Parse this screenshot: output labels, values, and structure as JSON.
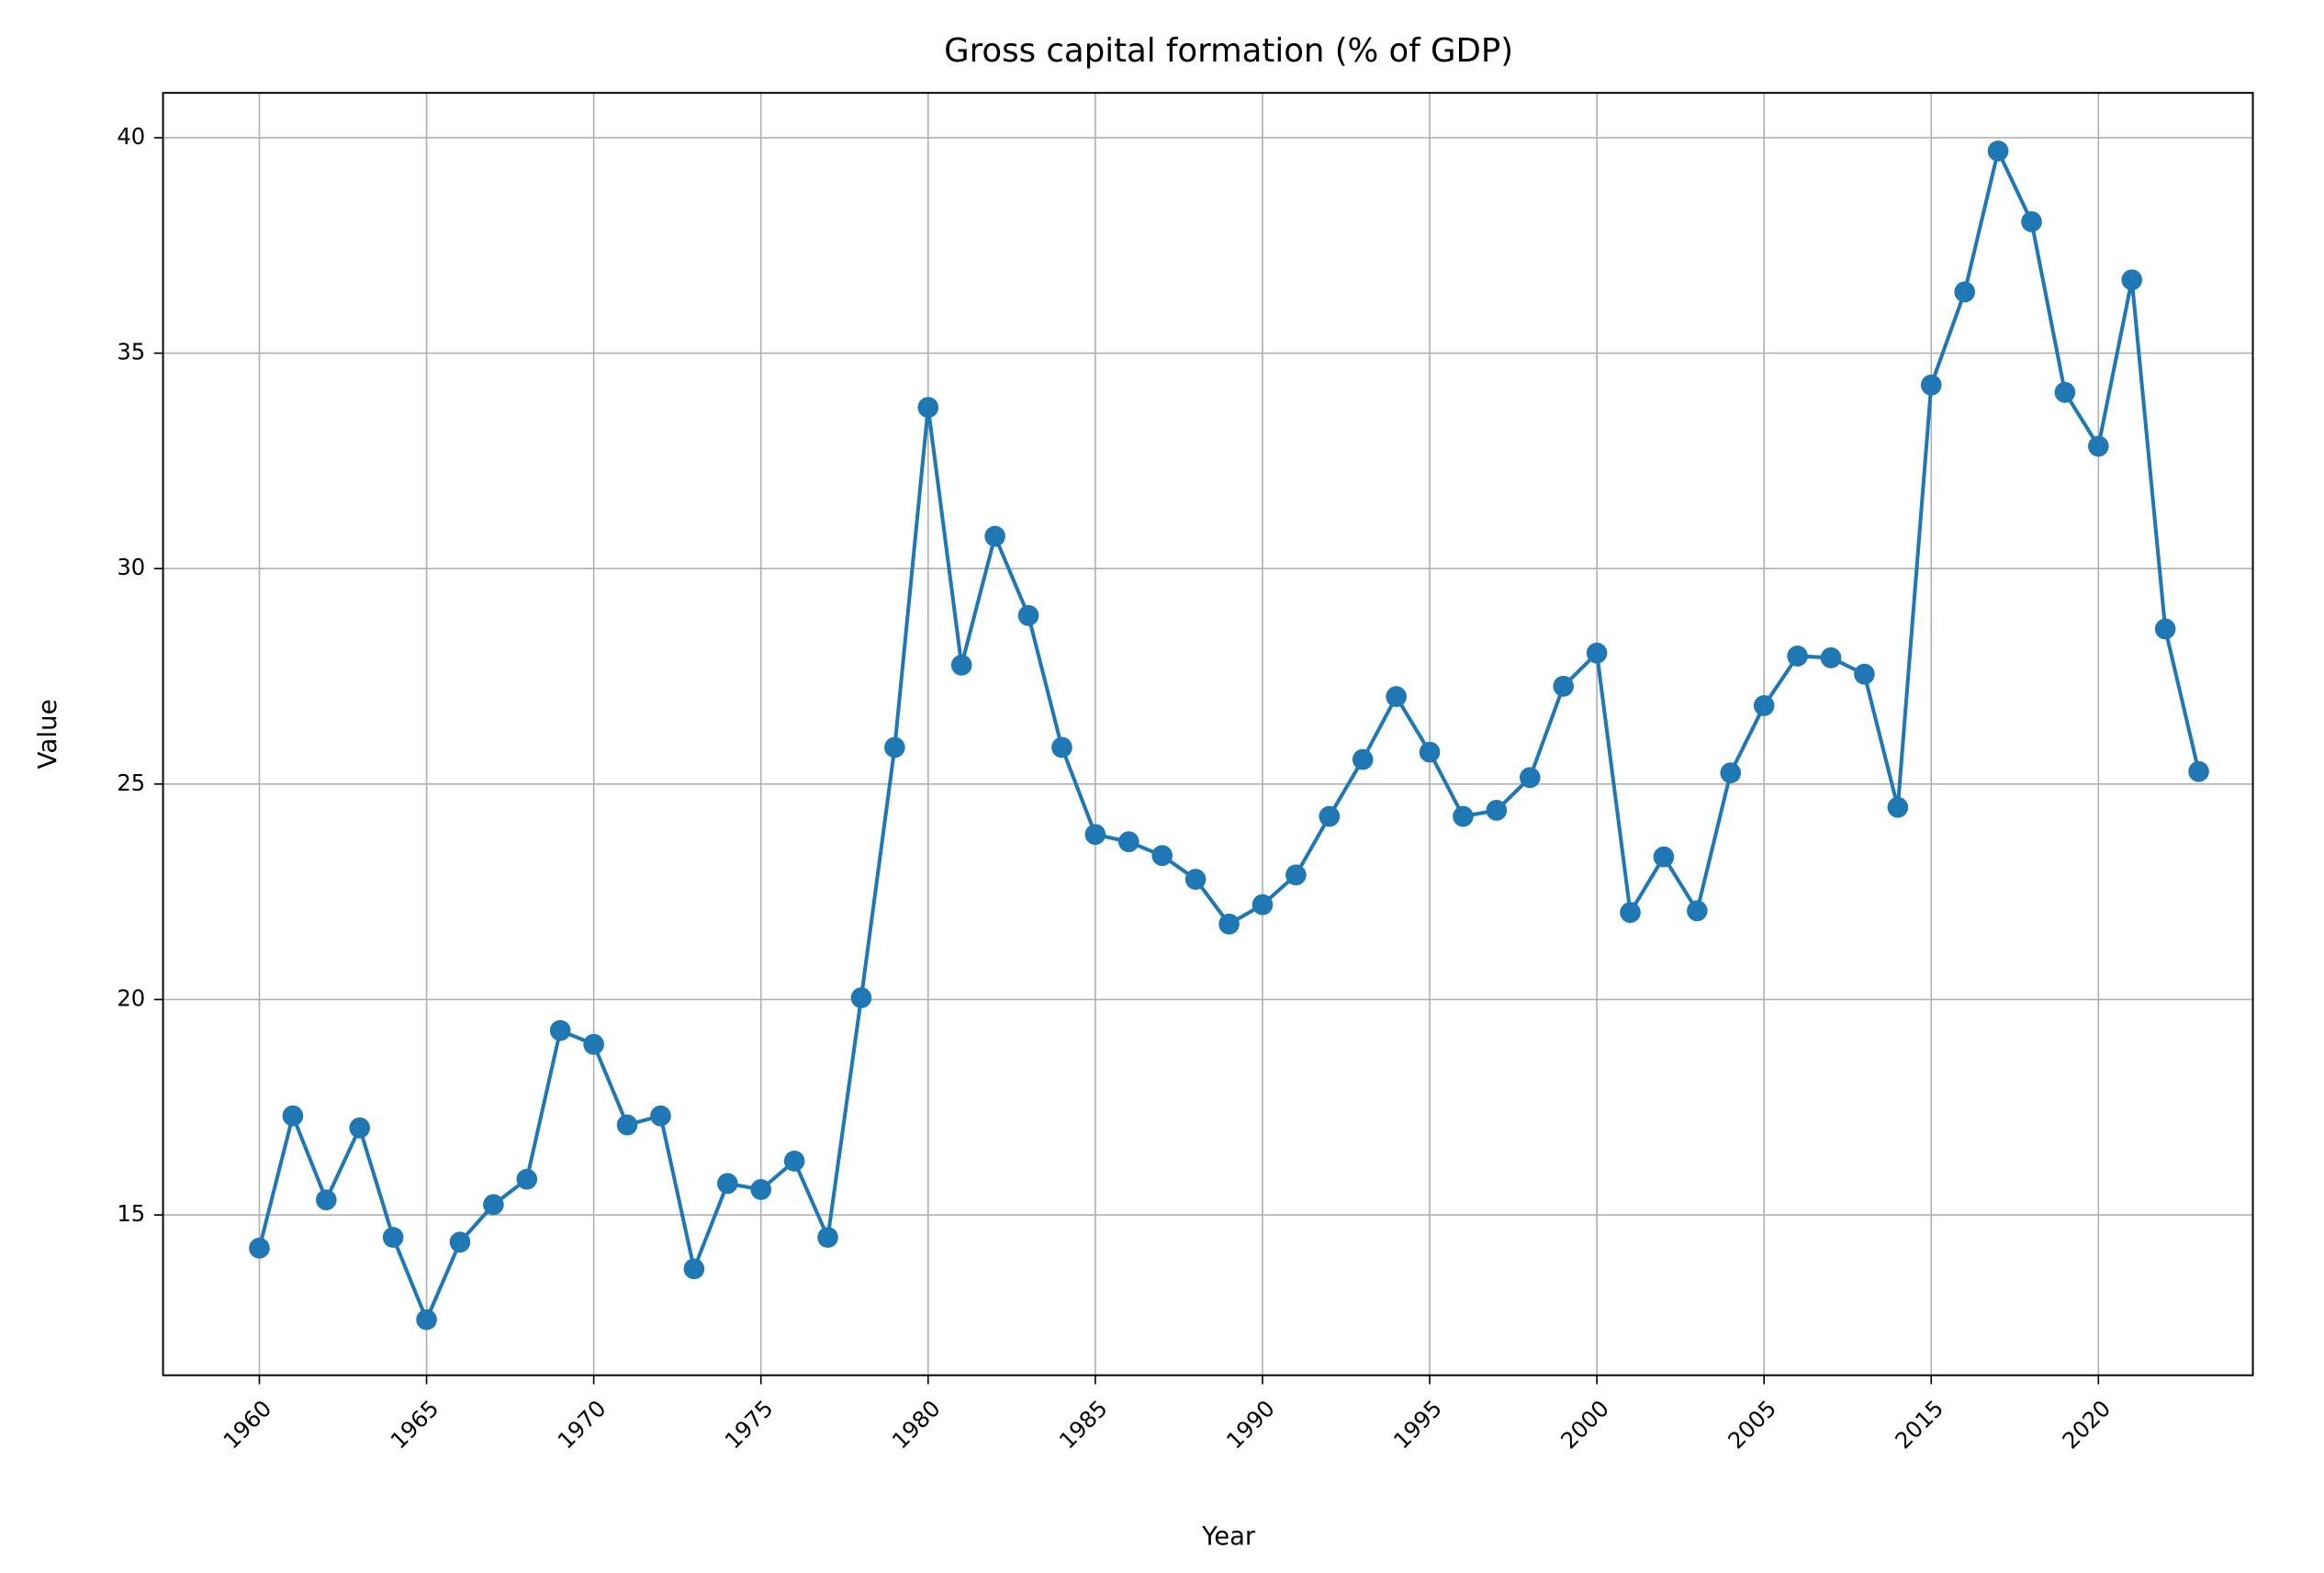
{
  "chart_data": {
    "type": "line",
    "title": "Gross capital formation (% of GDP)",
    "x_label": "Year",
    "y_label": "Value",
    "categories": [
      "1960",
      null,
      null,
      null,
      null,
      "1965",
      null,
      null,
      null,
      null,
      "1970",
      null,
      null,
      null,
      null,
      "1975",
      null,
      null,
      null,
      null,
      "1980",
      null,
      null,
      null,
      null,
      "1985",
      null,
      null,
      null,
      null,
      "1990",
      null,
      null,
      null,
      null,
      "1995",
      null,
      null,
      null,
      null,
      "2000",
      null,
      null,
      null,
      null,
      "2005",
      null,
      null,
      null,
      null,
      "2015",
      null,
      null,
      null,
      null,
      "2020",
      null,
      null,
      null
    ],
    "series": [
      {
        "name": "Value",
        "color": "#1f77b4",
        "values": [
          14.23,
          17.3,
          15.35,
          17.02,
          14.48,
          12.57,
          14.37,
          15.24,
          15.83,
          19.28,
          18.96,
          17.09,
          17.3,
          13.75,
          15.73,
          15.59,
          16.25,
          14.48,
          20.04,
          25.85,
          33.74,
          27.76,
          30.75,
          28.91,
          25.85,
          23.83,
          23.66,
          23.34,
          22.79,
          21.75,
          22.2,
          22.89,
          24.25,
          25.57,
          27.03,
          25.74,
          24.25,
          24.39,
          25.15,
          27.27,
          28.04,
          22.02,
          23.31,
          22.06,
          25.26,
          26.82,
          27.97,
          27.93,
          27.55,
          24.46,
          34.26,
          36.42,
          39.69,
          38.05,
          34.09,
          32.84,
          36.7,
          28.6,
          25.29
        ]
      }
    ],
    "ylim": [
      11.28,
      41.04
    ],
    "yticks": [
      15,
      20,
      25,
      30,
      35,
      40
    ],
    "grid": true
  }
}
